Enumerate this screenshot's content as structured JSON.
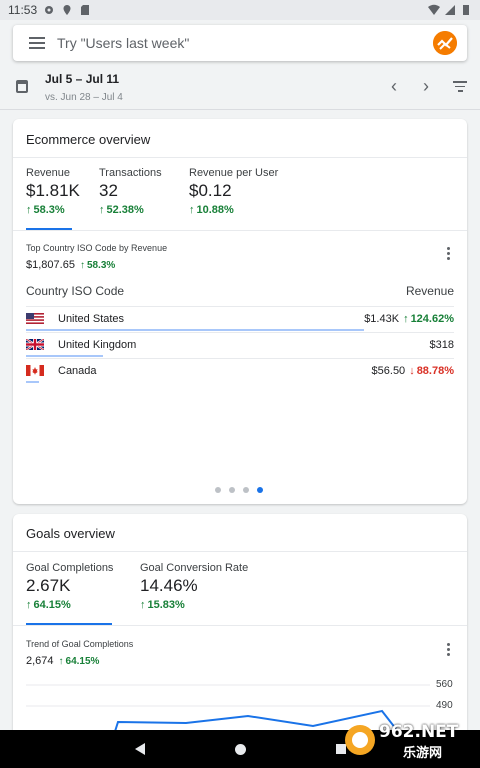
{
  "status_bar": {
    "time": "11:53"
  },
  "search": {
    "placeholder": "Try \"Users last week\""
  },
  "date_range": {
    "current": "Jul 5 – Jul 11",
    "comparison": "vs. Jun 28 – Jul 4"
  },
  "ecommerce": {
    "title": "Ecommerce overview",
    "metrics": [
      {
        "label": "Revenue",
        "value": "$1.81K",
        "change": "58.3%",
        "direction": "up"
      },
      {
        "label": "Transactions",
        "value": "32",
        "change": "52.38%",
        "direction": "up"
      },
      {
        "label": "Revenue per User",
        "value": "$0.12",
        "change": "10.88%",
        "direction": "up"
      }
    ],
    "breakdown": {
      "title": "Top Country ISO Code by Revenue",
      "total": "$1,807.65",
      "total_change": "58.3%",
      "col_dimension": "Country ISO Code",
      "col_metric": "Revenue",
      "rows": [
        {
          "country": "United States",
          "revenue": "$1.43K",
          "change": "124.62%",
          "direction": "up",
          "share": 0.79
        },
        {
          "country": "United Kingdom",
          "revenue": "$318",
          "change": "",
          "direction": "none",
          "share": 0.18
        },
        {
          "country": "Canada",
          "revenue": "$56.50",
          "change": "88.78%",
          "direction": "down",
          "share": 0.03
        }
      ]
    },
    "pager": {
      "pages": 4,
      "active": 4
    }
  },
  "goals": {
    "title": "Goals overview",
    "metrics": [
      {
        "label": "Goal Completions",
        "value": "2.67K",
        "change": "64.15%",
        "direction": "up"
      },
      {
        "label": "Goal Conversion Rate",
        "value": "14.46%",
        "change": "15.83%",
        "direction": "up"
      }
    ],
    "trend": {
      "title": "Trend of Goal Completions",
      "total": "2,674",
      "total_change": "64.15%",
      "y_ticks": [
        "560",
        "490"
      ]
    }
  },
  "colors": {
    "accent": "#1a73e8",
    "positive": "#188038",
    "negative": "#d93025",
    "logo": "#f57c00"
  },
  "watermark": {
    "text": "962.NET",
    "sub": "乐游网"
  }
}
